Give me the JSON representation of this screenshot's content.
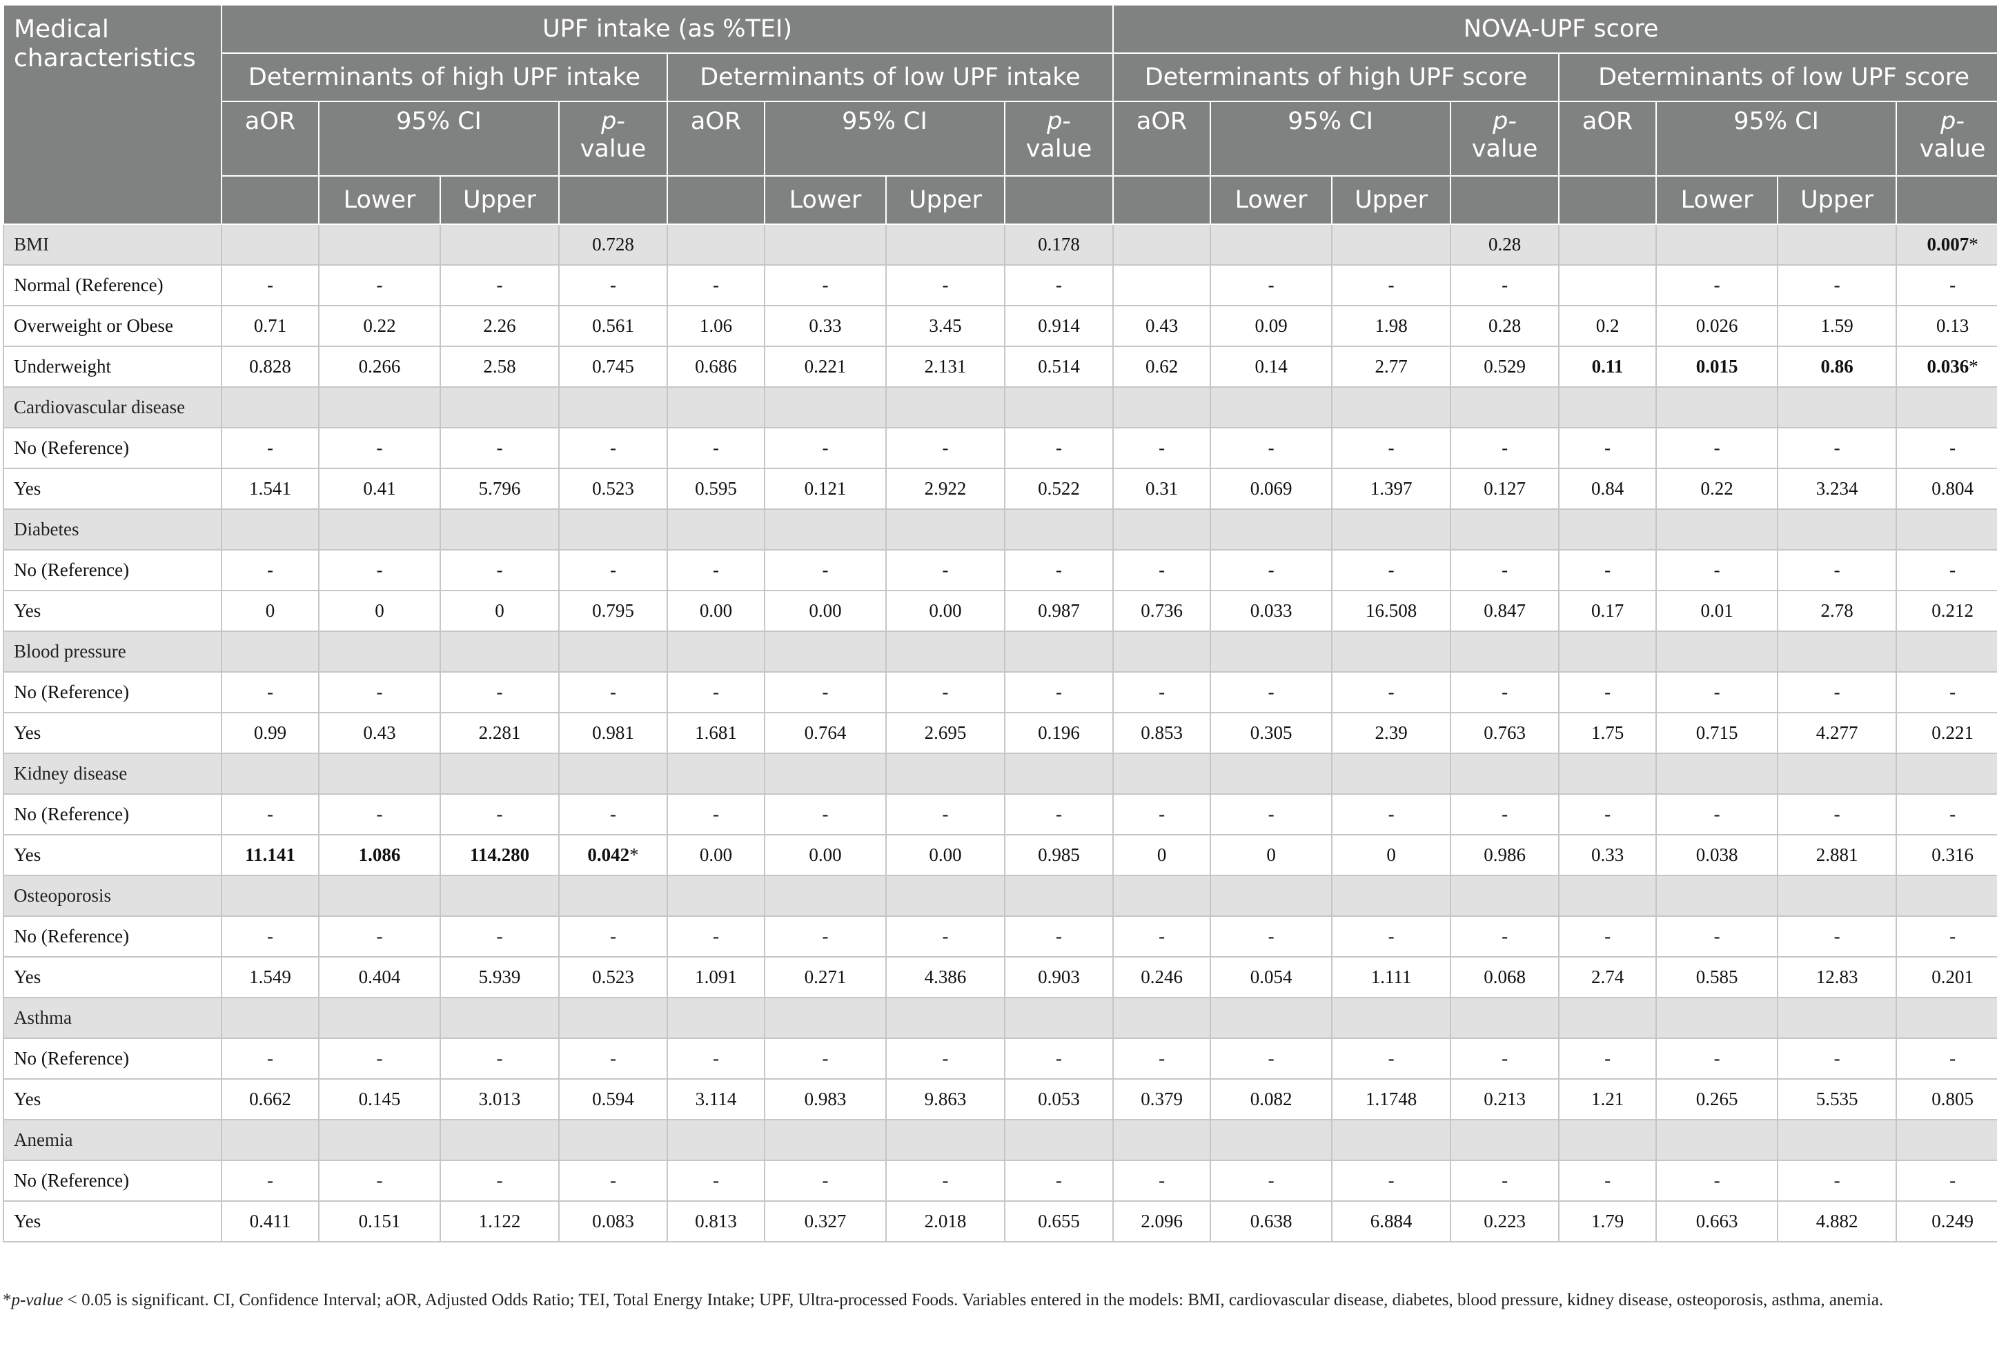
{
  "header": {
    "medical_characteristics": "Medical characteristics",
    "group_upf_intake": "UPF intake (as %TEI)",
    "group_nova_score": "NOVA-UPF score",
    "sub_high_intake": "Determinants of high UPF intake",
    "sub_low_intake": "Determinants of low UPF intake",
    "sub_high_score": "Determinants of high UPF score",
    "sub_low_score": "Determinants of low UPF score",
    "aor": "aOR",
    "ci": "95% CI",
    "p_italic": "p-",
    "p_value": "value",
    "lower": "Lower",
    "upper": "Upper"
  },
  "rows": [
    {
      "label": "BMI",
      "group": true,
      "cells": [
        "",
        "",
        "",
        "0.728",
        "",
        "",
        "",
        "0.178",
        "",
        "",
        "",
        "0.28",
        "",
        "",
        "",
        "0.007*"
      ],
      "bold": [
        15
      ]
    },
    {
      "label": "Normal (Reference)",
      "cells": [
        "-",
        "-",
        "-",
        "-",
        "-",
        "-",
        "-",
        "-",
        "",
        "-",
        "-",
        "-",
        "",
        "-",
        "-",
        "-"
      ]
    },
    {
      "label": "Overweight or Obese",
      "cells": [
        "0.71",
        "0.22",
        "2.26",
        "0.561",
        "1.06",
        "0.33",
        "3.45",
        "0.914",
        "0.43",
        "0.09",
        "1.98",
        "0.28",
        "0.2",
        "0.026",
        "1.59",
        "0.13"
      ]
    },
    {
      "label": "Underweight",
      "cells": [
        "0.828",
        "0.266",
        "2.58",
        "0.745",
        "0.686",
        "0.221",
        "2.131",
        "0.514",
        "0.62",
        "0.14",
        "2.77",
        "0.529",
        "0.11",
        "0.015",
        "0.86",
        "0.036*"
      ],
      "bold": [
        12,
        13,
        14,
        15
      ]
    },
    {
      "label": "Cardiovascular disease",
      "group": true
    },
    {
      "label": "No (Reference)",
      "cells": [
        "-",
        "-",
        "-",
        "-",
        "-",
        "-",
        "-",
        "-",
        "-",
        "-",
        "-",
        "-",
        "-",
        "-",
        "-",
        "-"
      ]
    },
    {
      "label": "Yes",
      "cells": [
        "1.541",
        "0.41",
        "5.796",
        "0.523",
        "0.595",
        "0.121",
        "2.922",
        "0.522",
        "0.31",
        "0.069",
        "1.397",
        "0.127",
        "0.84",
        "0.22",
        "3.234",
        "0.804"
      ]
    },
    {
      "label": "Diabetes",
      "group": true
    },
    {
      "label": "No (Reference)",
      "cells": [
        "-",
        "-",
        "-",
        "-",
        "-",
        "-",
        "-",
        "-",
        "-",
        "-",
        "-",
        "-",
        "-",
        "-",
        "-",
        "-"
      ]
    },
    {
      "label": "Yes",
      "cells": [
        "0",
        "0",
        "0",
        "0.795",
        "0.00",
        "0.00",
        "0.00",
        "0.987",
        "0.736",
        "0.033",
        "16.508",
        "0.847",
        "0.17",
        "0.01",
        "2.78",
        "0.212"
      ]
    },
    {
      "label": "Blood pressure",
      "group": true
    },
    {
      "label": "No (Reference)",
      "cells": [
        "-",
        "-",
        "-",
        "-",
        "-",
        "-",
        "-",
        "-",
        "-",
        "-",
        "-",
        "-",
        "-",
        "-",
        "-",
        "-"
      ]
    },
    {
      "label": "Yes",
      "cells": [
        "0.99",
        "0.43",
        "2.281",
        "0.981",
        "1.681",
        "0.764",
        "2.695",
        "0.196",
        "0.853",
        "0.305",
        "2.39",
        "0.763",
        "1.75",
        "0.715",
        "4.277",
        "0.221"
      ]
    },
    {
      "label": "Kidney disease",
      "group": true
    },
    {
      "label": "No (Reference)",
      "cells": [
        "-",
        "-",
        "-",
        "-",
        "-",
        "-",
        "-",
        "-",
        "-",
        "-",
        "-",
        "-",
        "-",
        "-",
        "-",
        "-"
      ]
    },
    {
      "label": "Yes",
      "cells": [
        "11.141",
        "1.086",
        "114.280",
        "0.042*",
        "0.00",
        "0.00",
        "0.00",
        "0.985",
        "0",
        "0",
        "0",
        "0.986",
        "0.33",
        "0.038",
        "2.881",
        "0.316"
      ],
      "bold": [
        0,
        1,
        2,
        3
      ]
    },
    {
      "label": "Osteoporosis",
      "group": true
    },
    {
      "label": "No (Reference)",
      "cells": [
        "-",
        "-",
        "-",
        "-",
        "-",
        "-",
        "-",
        "-",
        "-",
        "-",
        "-",
        "-",
        "-",
        "-",
        "-",
        "-"
      ]
    },
    {
      "label": "Yes",
      "cells": [
        "1.549",
        "0.404",
        "5.939",
        "0.523",
        "1.091",
        "0.271",
        "4.386",
        "0.903",
        "0.246",
        "0.054",
        "1.111",
        "0.068",
        "2.74",
        "0.585",
        "12.83",
        "0.201"
      ]
    },
    {
      "label": "Asthma",
      "group": true
    },
    {
      "label": "No (Reference)",
      "cells": [
        "-",
        "-",
        "-",
        "-",
        "-",
        "-",
        "-",
        "-",
        "-",
        "-",
        "-",
        "-",
        "-",
        "-",
        "-",
        "-"
      ]
    },
    {
      "label": "Yes",
      "cells": [
        "0.662",
        "0.145",
        "3.013",
        "0.594",
        "3.114",
        "0.983",
        "9.863",
        "0.053",
        "0.379",
        "0.082",
        "1.1748",
        "0.213",
        "1.21",
        "0.265",
        "5.535",
        "0.805"
      ]
    },
    {
      "label": "Anemia",
      "group": true
    },
    {
      "label": "No (Reference)",
      "cells": [
        "-",
        "-",
        "-",
        "-",
        "-",
        "-",
        "-",
        "-",
        "-",
        "-",
        "-",
        "-",
        "-",
        "-",
        "-",
        "-"
      ]
    },
    {
      "label": "Yes",
      "cells": [
        "0.411",
        "0.151",
        "1.122",
        "0.083",
        "0.813",
        "0.327",
        "2.018",
        "0.655",
        "2.096",
        "0.638",
        "6.884",
        "0.223",
        "1.79",
        "0.663",
        "4.882",
        "0.249"
      ]
    }
  ],
  "footnote": {
    "star": "*",
    "p_value_italic": "p-value",
    "text": " < 0.05 is significant. CI, Confidence Interval; aOR, Adjusted Odds Ratio; TEI, Total Energy Intake; UPF, Ultra-processed Foods. Variables entered in the models: BMI, cardiovascular disease, diabetes, blood pressure, kidney disease, osteoporosis, asthma, anemia."
  }
}
